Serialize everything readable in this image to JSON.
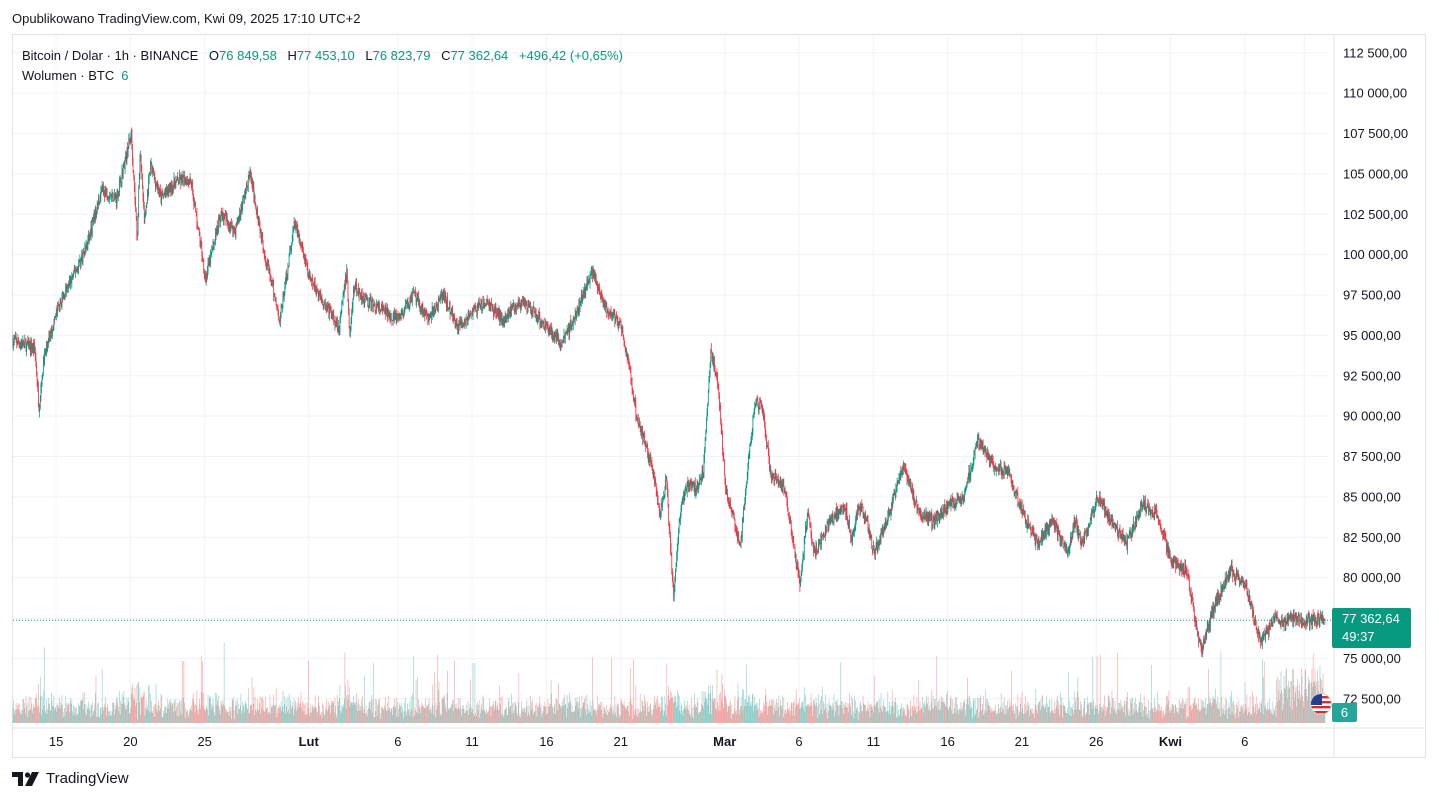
{
  "header": {
    "published": "Opublikowano TradingView.com, Kwi 09, 2025 17:10 UTC+2"
  },
  "legend": {
    "symbol": "Bitcoin / Dolar · 1h · BINANCE",
    "open_label": "O",
    "open": "76 849,58",
    "high_label": "H",
    "high": "77 453,10",
    "low_label": "L",
    "low": "76 823,79",
    "close_label": "C",
    "close": "77 362,64",
    "change": "+496,42 (+0,65%)",
    "volume_label": "Wolumen · BTC",
    "volume": "6"
  },
  "last_price": {
    "price": "77 362,64",
    "countdown": "49:37"
  },
  "volume_tag": "6",
  "footer": {
    "brand": "TradingView"
  },
  "colors": {
    "up": "#089981",
    "down": "#f23645",
    "vol_up": "#26a69a",
    "vol_down": "#ef5350",
    "grid": "#f0f3fa"
  },
  "chart_data": {
    "type": "candlestick",
    "interval": "1h",
    "y_axis": {
      "min": 71000,
      "max": 113600,
      "ticks": [
        72500,
        75000,
        77500,
        80000,
        82500,
        85000,
        87500,
        90000,
        92500,
        95000,
        97500,
        100000,
        102500,
        105000,
        107500,
        110000,
        112500
      ],
      "tick_labels": [
        "72 500,00",
        "75 000,00",
        "",
        "80 000,00",
        "82 500,00",
        "85 000,00",
        "87 500,00",
        "90 000,00",
        "92 500,00",
        "95 000,00",
        "97 500,00",
        "100 000,00",
        "102 500,00",
        "105 000,00",
        "107 500,00",
        "110 000,00",
        "112 500,00"
      ]
    },
    "x_axis": {
      "day_min": 0,
      "day_max": 88.5,
      "tick_days": [
        2.9,
        7.9,
        12.9,
        19.9,
        25.9,
        30.9,
        35.9,
        40.9,
        47.9,
        52.9,
        57.9,
        62.9,
        67.9,
        72.9,
        77.9,
        82.9,
        86.9
      ],
      "tick_labels": [
        "15",
        "20",
        "25",
        "Lut",
        "6",
        "11",
        "16",
        "21",
        "Mar",
        "6",
        "11",
        "16",
        "21",
        "26",
        "Kwi",
        "6",
        ""
      ],
      "tick_bold": [
        false,
        false,
        false,
        true,
        false,
        false,
        false,
        false,
        true,
        false,
        false,
        false,
        false,
        false,
        true,
        false,
        false
      ]
    },
    "price_path_days": [
      0,
      1.5,
      1.8,
      2.1,
      3.0,
      4.0,
      5.0,
      6.0,
      7.0,
      8.0,
      8.4,
      8.6,
      8.9,
      9.3,
      10.0,
      11.0,
      12.0,
      13.0,
      14.0,
      15.0,
      16.0,
      17.0,
      18.0,
      19.0,
      20.0,
      21.0,
      22.0,
      22.5,
      22.7,
      23.0,
      24.0,
      25.0,
      26.0,
      27.0,
      28.0,
      29.0,
      30.0,
      31.0,
      32.0,
      33.0,
      34.0,
      35.0,
      36.0,
      37.0,
      38.0,
      39.0,
      40.0,
      40.6,
      41.0,
      41.5,
      42.0,
      43.0,
      43.6,
      44.0,
      44.5,
      45.0,
      45.5,
      46.0,
      46.5,
      47.0,
      47.5,
      48.0,
      49.0,
      49.5,
      50.0,
      50.5,
      51.0,
      52.0,
      53.0,
      53.5,
      54.0,
      55.0,
      56.0,
      56.5,
      57.0,
      57.5,
      58.0,
      59.0,
      60.0,
      61.0,
      62.0,
      63.0,
      64.0,
      65.0,
      66.0,
      67.0,
      68.0,
      69.0,
      70.0,
      71.0,
      71.5,
      72.0,
      73.0,
      74.0,
      75.0,
      76.0,
      77.0,
      78.0,
      79.0,
      79.5,
      80.0,
      81.0,
      82.0,
      83.0,
      84.0,
      85.0,
      85.5,
      86.0,
      86.3,
      86.6,
      87.0,
      87.5,
      88.0
    ],
    "price_path_values": [
      94700,
      94200,
      90500,
      93500,
      96500,
      98500,
      100500,
      104000,
      103500,
      107500,
      101000,
      106500,
      102000,
      105500,
      103500,
      104500,
      104700,
      98500,
      102500,
      101500,
      105000,
      100000,
      96000,
      102000,
      98500,
      97000,
      95500,
      99000,
      95000,
      98000,
      97000,
      96500,
      96000,
      97500,
      96000,
      97500,
      95500,
      96500,
      97000,
      96000,
      97000,
      96500,
      95500,
      94500,
      96500,
      99000,
      96500,
      96000,
      95500,
      93000,
      90000,
      87000,
      84000,
      86000,
      79000,
      84500,
      86000,
      85500,
      86500,
      94000,
      92000,
      85500,
      82000,
      87000,
      91000,
      90500,
      86500,
      85500,
      79500,
      84000,
      81500,
      83500,
      84500,
      82500,
      84500,
      83500,
      81500,
      84000,
      87000,
      84000,
      83500,
      84500,
      85000,
      88500,
      87000,
      86500,
      84000,
      82000,
      83500,
      81500,
      83500,
      82000,
      85000,
      83500,
      82000,
      84500,
      84000,
      81000,
      80500,
      78000,
      75500,
      78500,
      80500,
      79500,
      76000,
      77500,
      77300,
      77400,
      77400,
      77400,
      77400,
      77400,
      77400
    ],
    "volume_scale": {
      "min": 0,
      "max": 1
    },
    "last_price": 77362.64,
    "open": 76849.58,
    "high": 77453.1,
    "low": 76823.79,
    "close": 77362.64
  }
}
